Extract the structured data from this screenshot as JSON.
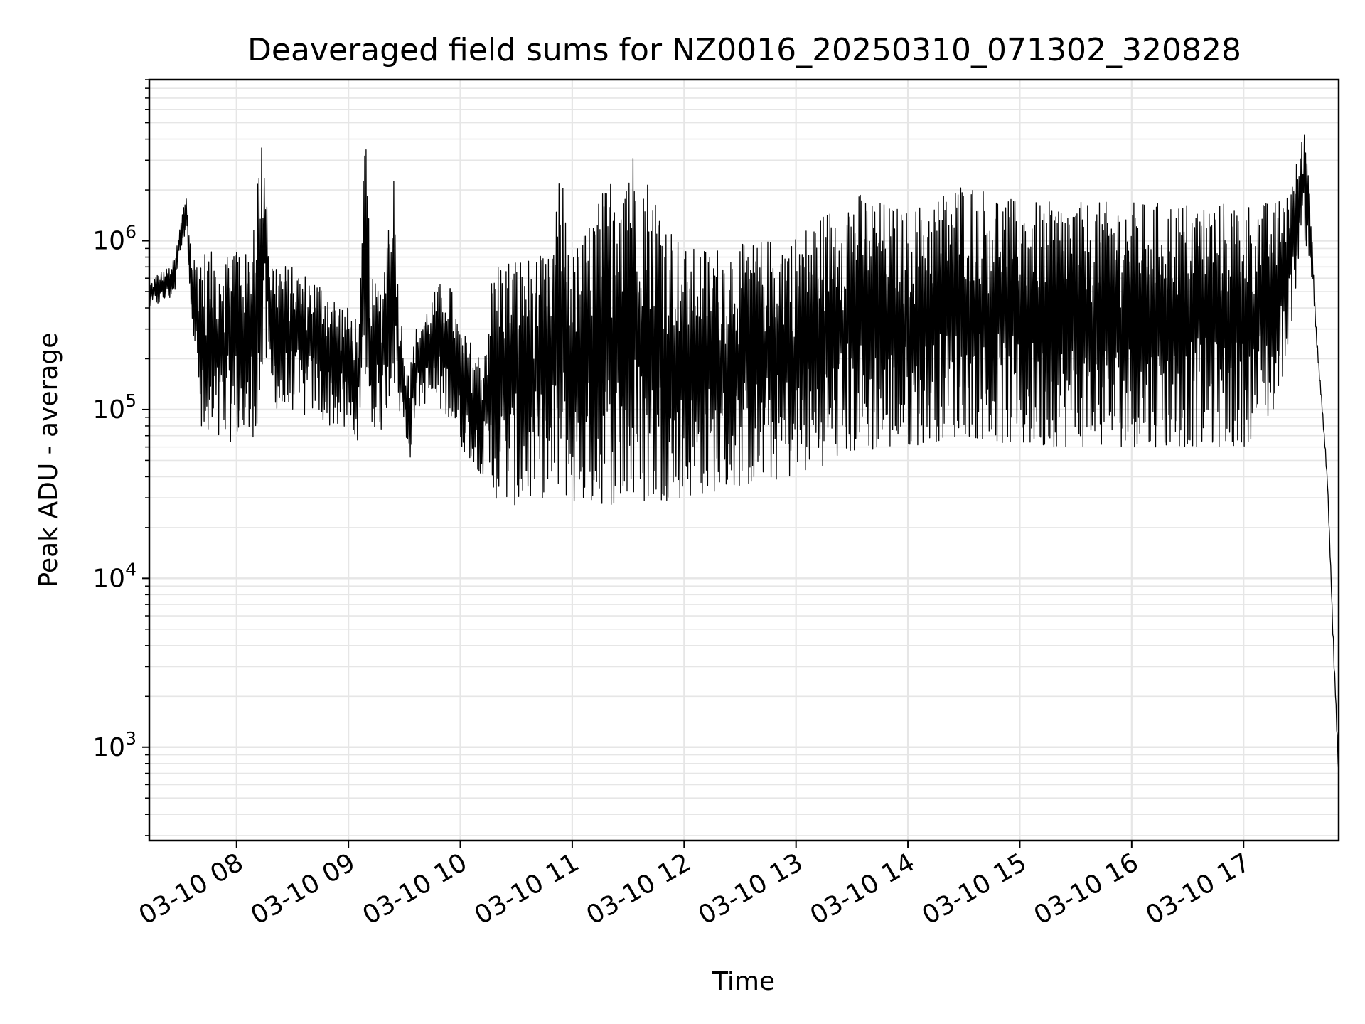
{
  "chart_data": {
    "type": "line",
    "title": "Deaveraged field sums for NZ0016_20250310_071302_320828",
    "xlabel": "Time",
    "ylabel": "Peak ADU - average",
    "yscale": "log",
    "ylim": [
      280,
      9000000
    ],
    "xlim_hours": [
      7.22,
      17.85
    ],
    "grid": true,
    "x_ticks": [
      {
        "hour": 8,
        "label": "03-10 08"
      },
      {
        "hour": 9,
        "label": "03-10 09"
      },
      {
        "hour": 10,
        "label": "03-10 10"
      },
      {
        "hour": 11,
        "label": "03-10 11"
      },
      {
        "hour": 12,
        "label": "03-10 12"
      },
      {
        "hour": 13,
        "label": "03-10 13"
      },
      {
        "hour": 14,
        "label": "03-10 14"
      },
      {
        "hour": 15,
        "label": "03-10 15"
      },
      {
        "hour": 16,
        "label": "03-10 16"
      },
      {
        "hour": 17,
        "label": "03-10 17"
      }
    ],
    "y_ticks": [
      {
        "value": 1000,
        "base": "10",
        "exp": "3"
      },
      {
        "value": 10000,
        "base": "10",
        "exp": "4"
      },
      {
        "value": 100000,
        "base": "10",
        "exp": "5"
      },
      {
        "value": 1000000,
        "base": "10",
        "exp": "6"
      }
    ],
    "line_color": "#000000",
    "series": [
      {
        "x_hours": [
          7.22,
          7.3,
          7.4,
          7.45,
          7.5,
          7.55,
          7.6,
          7.7,
          7.8,
          7.9,
          8.0,
          8.1,
          8.2,
          8.25,
          8.3,
          8.4,
          8.5,
          8.6,
          8.7,
          8.8,
          8.9,
          9.0,
          9.1,
          9.15,
          9.2,
          9.3,
          9.4,
          9.45,
          9.5,
          9.55,
          9.6,
          9.7,
          9.8,
          9.9,
          10.0,
          10.1,
          10.2,
          10.3,
          10.4,
          10.5,
          10.6,
          10.7,
          10.8,
          10.9,
          11.0,
          11.5,
          12.0,
          12.5,
          13.0,
          13.5,
          14.0,
          14.5,
          15.0,
          15.5,
          16.0,
          16.5,
          17.0,
          17.3,
          17.45,
          17.5,
          17.55,
          17.6,
          17.65,
          17.7,
          17.75,
          17.8,
          17.85
        ],
        "peak_values": [
          550000,
          650000,
          700000,
          800000,
          1300000,
          2000000,
          800000,
          900000,
          850000,
          900000,
          1100000,
          800000,
          3200000,
          4600000,
          800000,
          750000,
          700000,
          650000,
          600000,
          550000,
          450000,
          400000,
          350000,
          5800000,
          600000,
          550000,
          3100000,
          450000,
          250000,
          180000,
          300000,
          400000,
          550000,
          600000,
          300000,
          250000,
          200000,
          800000,
          800000,
          820000,
          800000,
          820000,
          800000,
          2800000,
          820000,
          4100000,
          900000,
          950000,
          1100000,
          2000000,
          1500000,
          2300000,
          1700000,
          1700000,
          1700000,
          1700000,
          1700000,
          1700000,
          2500000,
          3500000,
          5000000,
          1800000,
          300000,
          120000,
          40000,
          5000,
          750
        ],
        "trough_values": [
          400000,
          420000,
          450000,
          500000,
          900000,
          1100000,
          350000,
          50000,
          60000,
          60000,
          70000,
          60000,
          80000,
          200000,
          120000,
          90000,
          100000,
          90000,
          100000,
          80000,
          80000,
          70000,
          65000,
          150000,
          80000,
          75000,
          150000,
          100000,
          70000,
          50000,
          100000,
          110000,
          100000,
          90000,
          60000,
          50000,
          40000,
          30000,
          28000,
          27000,
          28000,
          30000,
          30000,
          32000,
          28000,
          27000,
          30000,
          35000,
          40000,
          55000,
          60000,
          70000,
          60000,
          60000,
          60000,
          60000,
          60000,
          100000,
          400000,
          900000,
          1000000,
          700000,
          250000,
          100000,
          35000,
          4000,
          600
        ]
      }
    ]
  }
}
